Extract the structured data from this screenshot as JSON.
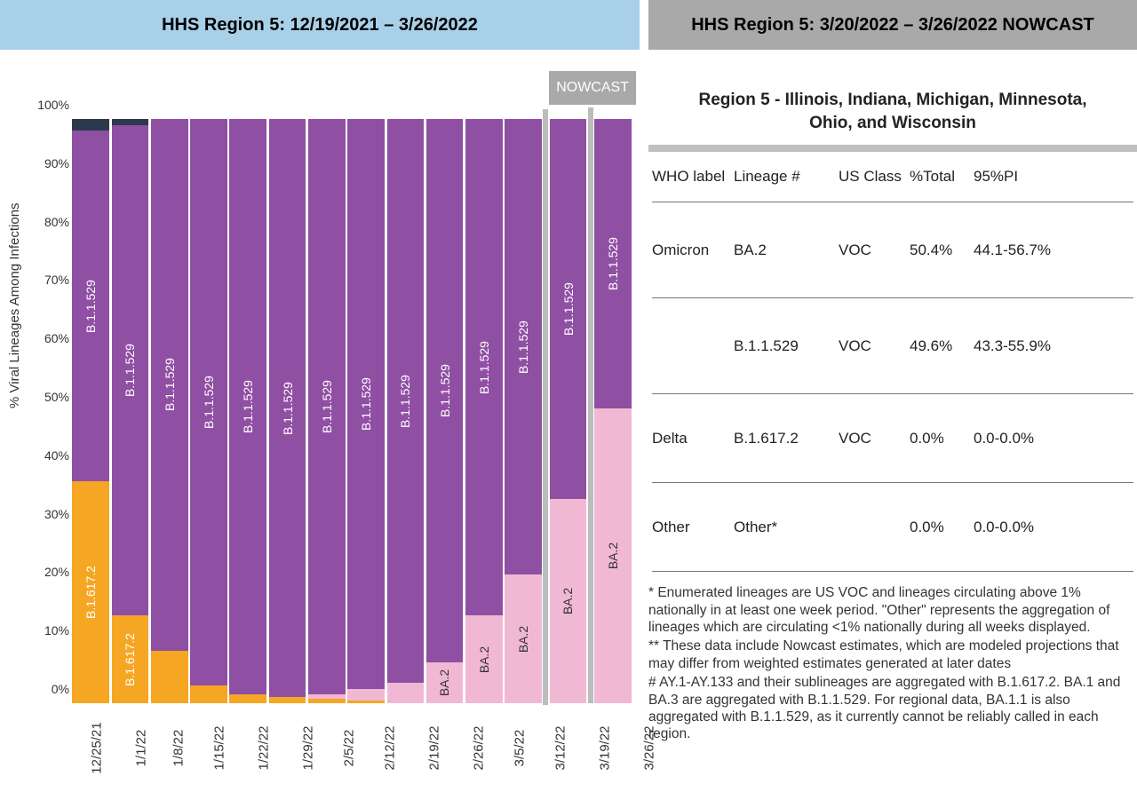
{
  "titles": {
    "left": "HHS Region 5: 12/19/2021 – 3/26/2022",
    "right": "HHS Region 5: 3/20/2022 – 3/26/2022 NOWCAST",
    "nowcast_badge": "NOWCAST",
    "region_subtitle": "Region 5 - Illinois, Indiana, Michigan, Minnesota, Ohio, and Wisconsin"
  },
  "chart": {
    "type": "stacked-bar",
    "y_label": "% Viral Lineages Among Infections",
    "y_ticks": [
      "0%",
      "10%",
      "20%",
      "30%",
      "40%",
      "50%",
      "60%",
      "70%",
      "80%",
      "90%",
      "100%"
    ],
    "ylim": [
      0,
      100
    ],
    "colors": {
      "B.1.1.529": "#8f4fa3",
      "BA.2": "#f1b8d4",
      "B.1.617.2": "#f5a623",
      "Other": "#2b3a4a"
    },
    "bar_gap_color": "#ffffff",
    "nowcast_start_index": 12,
    "dates": [
      "12/25/21",
      "1/1/22",
      "1/8/22",
      "1/15/22",
      "1/22/22",
      "1/29/22",
      "2/5/22",
      "2/12/22",
      "2/19/22",
      "2/26/22",
      "3/5/22",
      "3/12/22",
      "3/19/22",
      "3/26/22"
    ],
    "series": [
      {
        "date": "12/25/21",
        "stack": [
          {
            "lineage": "B.1.617.2",
            "pct": 38,
            "label": "B.1.617.2"
          },
          {
            "lineage": "B.1.1.529",
            "pct": 60,
            "label": "B.1.1.529"
          },
          {
            "lineage": "Other",
            "pct": 2
          }
        ]
      },
      {
        "date": "1/1/22",
        "stack": [
          {
            "lineage": "B.1.617.2",
            "pct": 15,
            "label": "B.1.617.2"
          },
          {
            "lineage": "B.1.1.529",
            "pct": 84,
            "label": "B.1.1.529"
          },
          {
            "lineage": "Other",
            "pct": 1
          }
        ]
      },
      {
        "date": "1/8/22",
        "stack": [
          {
            "lineage": "B.1.617.2",
            "pct": 9
          },
          {
            "lineage": "B.1.1.529",
            "pct": 91,
            "label": "B.1.1.529"
          }
        ]
      },
      {
        "date": "1/15/22",
        "stack": [
          {
            "lineage": "B.1.617.2",
            "pct": 3
          },
          {
            "lineage": "B.1.1.529",
            "pct": 97,
            "label": "B.1.1.529"
          }
        ]
      },
      {
        "date": "1/22/22",
        "stack": [
          {
            "lineage": "B.1.617.2",
            "pct": 1.5
          },
          {
            "lineage": "B.1.1.529",
            "pct": 98.5,
            "label": "B.1.1.529"
          }
        ]
      },
      {
        "date": "1/29/22",
        "stack": [
          {
            "lineage": "B.1.617.2",
            "pct": 1
          },
          {
            "lineage": "B.1.1.529",
            "pct": 99,
            "label": "B.1.1.529"
          }
        ]
      },
      {
        "date": "2/5/22",
        "stack": [
          {
            "lineage": "B.1.617.2",
            "pct": 0.8
          },
          {
            "lineage": "BA.2",
            "pct": 0.7
          },
          {
            "lineage": "B.1.1.529",
            "pct": 98.5,
            "label": "B.1.1.529"
          }
        ]
      },
      {
        "date": "2/12/22",
        "stack": [
          {
            "lineage": "B.1.617.2",
            "pct": 0.5
          },
          {
            "lineage": "BA.2",
            "pct": 2
          },
          {
            "lineage": "B.1.1.529",
            "pct": 97.5,
            "label": "B.1.1.529"
          }
        ]
      },
      {
        "date": "2/19/22",
        "stack": [
          {
            "lineage": "BA.2",
            "pct": 3.5
          },
          {
            "lineage": "B.1.1.529",
            "pct": 96.5,
            "label": "B.1.1.529"
          }
        ]
      },
      {
        "date": "2/26/22",
        "stack": [
          {
            "lineage": "BA.2",
            "pct": 7,
            "label": "BA.2"
          },
          {
            "lineage": "B.1.1.529",
            "pct": 93,
            "label": "B.1.1.529"
          }
        ]
      },
      {
        "date": "3/5/22",
        "stack": [
          {
            "lineage": "BA.2",
            "pct": 15,
            "label": "BA.2"
          },
          {
            "lineage": "B.1.1.529",
            "pct": 85,
            "label": "B.1.1.529"
          }
        ]
      },
      {
        "date": "3/12/22",
        "stack": [
          {
            "lineage": "BA.2",
            "pct": 22,
            "label": "BA.2"
          },
          {
            "lineage": "B.1.1.529",
            "pct": 78,
            "label": "B.1.1.529"
          }
        ]
      },
      {
        "date": "3/19/22",
        "stack": [
          {
            "lineage": "BA.2",
            "pct": 35,
            "label": "BA.2"
          },
          {
            "lineage": "B.1.1.529",
            "pct": 65,
            "label": "B.1.1.529"
          }
        ]
      },
      {
        "date": "3/26/22",
        "stack": [
          {
            "lineage": "BA.2",
            "pct": 50.4,
            "label": "BA.2"
          },
          {
            "lineage": "B.1.1.529",
            "pct": 49.6,
            "label": "B.1.1.529"
          }
        ]
      }
    ]
  },
  "table": {
    "headers": {
      "who": "WHO label",
      "lineage": "Lineage #",
      "usclass": "US Class",
      "total": "%Total",
      "pi": "95%PI"
    },
    "rows": [
      {
        "who": "Omicron",
        "lineage": "BA.2",
        "usclass": "VOC",
        "total": "50.4%",
        "pi": "44.1-56.7%"
      },
      {
        "who": "",
        "lineage": "B.1.1.529",
        "usclass": "VOC",
        "total": "49.6%",
        "pi": "43.3-55.9%"
      },
      {
        "who": "Delta",
        "lineage": "B.1.617.2",
        "usclass": "VOC",
        "total": "0.0%",
        "pi": "0.0-0.0%"
      },
      {
        "who": "Other",
        "lineage": "Other*",
        "usclass": "",
        "total": "0.0%",
        "pi": "0.0-0.0%"
      }
    ]
  },
  "footnotes": {
    "f1": "*      Enumerated lineages are US VOC and lineages circulating above 1% nationally in at least one week period. \"Other\" represents the aggregation of lineages which are circulating <1% nationally during all weeks displayed.",
    "f2": "**     These data include Nowcast estimates, which are modeled projections that may differ from weighted estimates generated at later dates",
    "f3": "#      AY.1-AY.133 and their sublineages are aggregated with B.1.617.2. BA.1 and BA.3 are aggregated with B.1.1.529. For regional data, BA.1.1 is also aggregated with B.1.1.529, as it currently cannot be reliably called in each region."
  }
}
